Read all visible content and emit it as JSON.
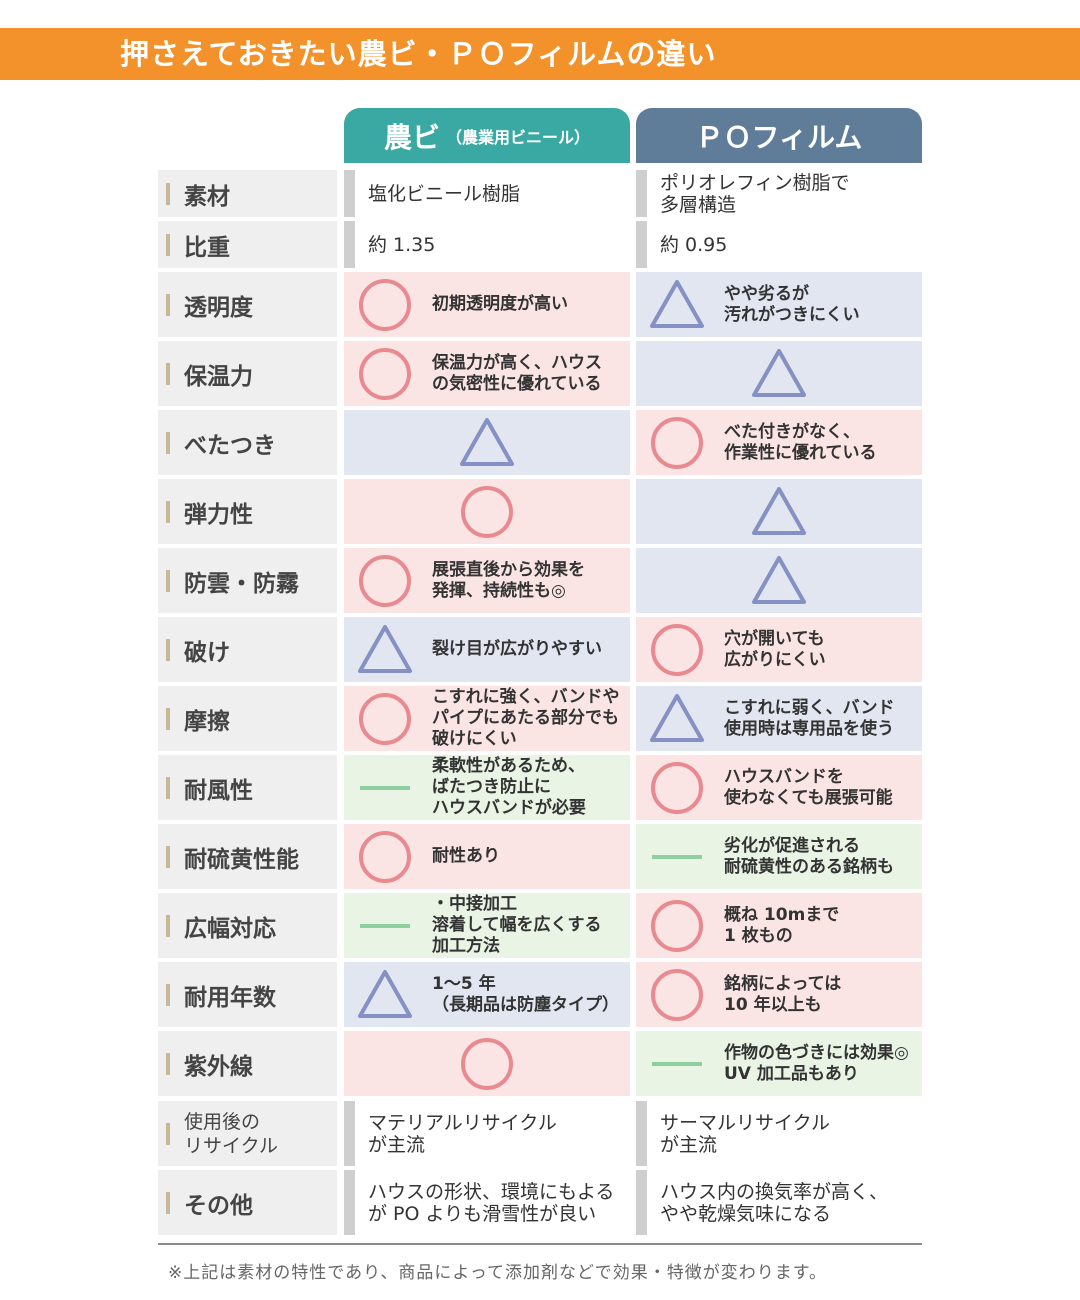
{
  "header": {
    "title": "押さえておきたい農ビ・ＰＯフィルムの違い"
  },
  "columns": [
    {
      "name": "農ビ",
      "note": "（農業用ビニール）",
      "color": "#3aa9a3"
    },
    {
      "name": "ＰＯフィルム",
      "color": "#5f7d99"
    }
  ],
  "rows": [
    {
      "label": [
        "素材"
      ],
      "cells": [
        {
          "symbol": null,
          "lines": [
            "塩化ビニール樹脂"
          ]
        },
        {
          "symbol": null,
          "lines": [
            "ポリオレフィン樹脂で",
            "多層構造"
          ]
        }
      ]
    },
    {
      "label": [
        "比重"
      ],
      "cells": [
        {
          "symbol": null,
          "lines": [
            "約 1.35"
          ]
        },
        {
          "symbol": null,
          "lines": [
            "約 0.95"
          ]
        }
      ]
    },
    {
      "label": [
        "透明度"
      ],
      "cells": [
        {
          "symbol": "circle",
          "lines": [
            "初期透明度が高い"
          ]
        },
        {
          "symbol": "triangle",
          "lines": [
            "やや劣るが",
            "汚れがつきにくい"
          ]
        }
      ]
    },
    {
      "label": [
        "保温力"
      ],
      "cells": [
        {
          "symbol": "circle",
          "lines": [
            "保温力が高く、ハウス",
            "の気密性に優れている"
          ]
        },
        {
          "symbol": "triangle",
          "lines": []
        }
      ]
    },
    {
      "label": [
        "べたつき"
      ],
      "cells": [
        {
          "symbol": "triangle",
          "lines": []
        },
        {
          "symbol": "circle",
          "lines": [
            "べた付きがなく、",
            "作業性に優れている"
          ]
        }
      ]
    },
    {
      "label": [
        "弾力性"
      ],
      "cells": [
        {
          "symbol": "circle",
          "lines": []
        },
        {
          "symbol": "triangle",
          "lines": []
        }
      ]
    },
    {
      "label": [
        "防雲・防霧"
      ],
      "cells": [
        {
          "symbol": "circle",
          "lines": [
            "展張直後から効果を",
            "発揮、持続性も◎"
          ]
        },
        {
          "symbol": "triangle",
          "lines": []
        }
      ]
    },
    {
      "label": [
        "破け"
      ],
      "cells": [
        {
          "symbol": "triangle",
          "lines": [
            "裂け目が広がりやすい"
          ]
        },
        {
          "symbol": "circle",
          "lines": [
            "穴が開いても",
            "広がりにくい"
          ]
        }
      ]
    },
    {
      "label": [
        "摩擦"
      ],
      "cells": [
        {
          "symbol": "circle",
          "lines": [
            "こすれに強く、バンドや",
            "パイプにあたる部分でも",
            "破けにくい"
          ]
        },
        {
          "symbol": "triangle",
          "lines": [
            "こすれに弱く、バンド",
            "使用時は専用品を使う"
          ]
        }
      ]
    },
    {
      "label": [
        "耐風性"
      ],
      "cells": [
        {
          "symbol": "dash",
          "lines": [
            "柔軟性があるため、",
            "ばたつき防止に",
            "ハウスバンドが必要"
          ]
        },
        {
          "symbol": "circle",
          "lines": [
            "ハウスバンドを",
            "使わなくても展張可能"
          ]
        }
      ]
    },
    {
      "label": [
        "耐硫黄性能"
      ],
      "cells": [
        {
          "symbol": "circle",
          "lines": [
            "耐性あり"
          ]
        },
        {
          "symbol": "dash",
          "lines": [
            "劣化が促進される",
            "耐硫黄性のある銘柄も"
          ]
        }
      ]
    },
    {
      "label": [
        "広幅対応"
      ],
      "cells": [
        {
          "symbol": "dash",
          "lines": [
            "・中接加工",
            "溶着して幅を広くする",
            "加工方法"
          ]
        },
        {
          "symbol": "circle",
          "lines": [
            "概ね 10mまで",
            "1 枚もの"
          ]
        }
      ]
    },
    {
      "label": [
        "耐用年数"
      ],
      "cells": [
        {
          "symbol": "triangle",
          "lines": [
            "1～5 年",
            "（長期品は防塵タイプ）"
          ]
        },
        {
          "symbol": "circle",
          "lines": [
            "銘柄によっては",
            "10 年以上も"
          ]
        }
      ]
    },
    {
      "label": [
        "紫外線"
      ],
      "cells": [
        {
          "symbol": "circle",
          "lines": []
        },
        {
          "symbol": "dash",
          "lines": [
            "作物の色づきには効果◎",
            "UV 加工品もあり"
          ]
        }
      ]
    },
    {
      "label": [
        "使用後の",
        "リサイクル"
      ],
      "cells": [
        {
          "symbol": null,
          "lines": [
            "マテリアルリサイクル",
            "が主流"
          ]
        },
        {
          "symbol": null,
          "lines": [
            "サーマルリサイクル",
            "が主流"
          ]
        }
      ]
    },
    {
      "label": [
        "その他"
      ],
      "cells": [
        {
          "symbol": null,
          "lines": [
            "ハウスの形状、環境にもよる",
            "が PO よりも滑雪性が良い"
          ]
        },
        {
          "symbol": null,
          "lines": [
            "ハウス内の換気率が高く、",
            "やや乾燥気味になる"
          ]
        }
      ]
    }
  ],
  "footer": {
    "note": "※上記は素材の特性であり、商品によって添加剤などで効果・特徴が変わります。"
  }
}
